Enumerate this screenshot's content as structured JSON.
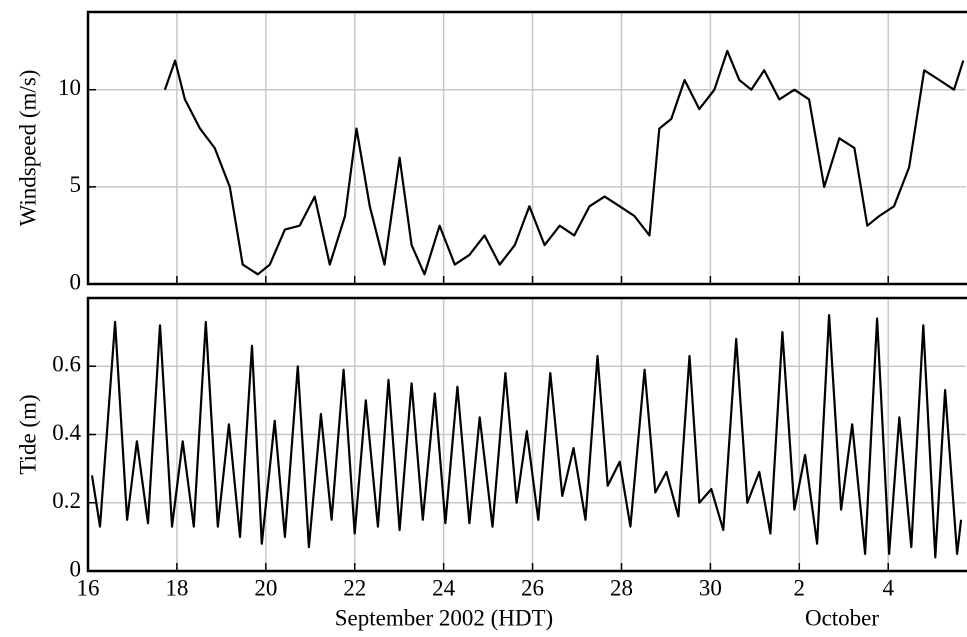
{
  "chart_data": [
    {
      "type": "line",
      "ylabel": "Windspeed (m/s)",
      "color": "#000000",
      "grid": true,
      "xlim": [
        0,
        19.75
      ],
      "ylim": [
        0,
        14
      ],
      "yticks": [
        0,
        5,
        10
      ],
      "x": [
        1.73,
        1.96,
        2.18,
        2.52,
        2.85,
        3.19,
        3.48,
        3.82,
        4.09,
        4.43,
        4.76,
        5.1,
        5.44,
        5.78,
        6.04,
        6.34,
        6.67,
        7.01,
        7.28,
        7.57,
        7.91,
        8.25,
        8.58,
        8.92,
        9.26,
        9.6,
        9.93,
        10.27,
        10.61,
        10.94,
        11.28,
        11.62,
        11.96,
        12.29,
        12.63,
        12.85,
        13.12,
        13.42,
        13.75,
        14.09,
        14.38,
        14.65,
        14.92,
        15.21,
        15.55,
        15.89,
        16.22,
        16.56,
        16.9,
        17.24,
        17.53,
        17.8,
        18.13,
        18.47,
        18.81,
        19.15,
        19.48,
        19.69
      ],
      "values": [
        10,
        11.5,
        9.5,
        8,
        7,
        5,
        1,
        0.5,
        1,
        2.8,
        3,
        4.5,
        1,
        3.5,
        8,
        4,
        1,
        6.5,
        2,
        0.5,
        3,
        1,
        1.5,
        2.5,
        1,
        2,
        4,
        2,
        3,
        2.5,
        4,
        4.5,
        4,
        3.5,
        2.5,
        8,
        8.5,
        10.5,
        9,
        10,
        12,
        10.5,
        10,
        11,
        9.5,
        10,
        9.5,
        5,
        7.5,
        7,
        3,
        3.5,
        4,
        6,
        11,
        10.5,
        10,
        11.5
      ]
    },
    {
      "type": "line",
      "ylabel": "Tide (m)",
      "xlabel": "September 2002 (HDT)",
      "annotation": "October",
      "color": "#000000",
      "grid": true,
      "xlim": [
        0,
        19.75
      ],
      "ylim": [
        0,
        0.8
      ],
      "yticks": [
        0,
        0.2,
        0.4,
        0.6
      ],
      "xticks": [
        {
          "value": 0,
          "label": "16"
        },
        {
          "value": 2,
          "label": "18"
        },
        {
          "value": 4,
          "label": "20"
        },
        {
          "value": 6,
          "label": "22"
        },
        {
          "value": 8,
          "label": "24"
        },
        {
          "value": 10,
          "label": "26"
        },
        {
          "value": 12,
          "label": "28"
        },
        {
          "value": 14,
          "label": "30"
        },
        {
          "value": 16,
          "label": "2"
        },
        {
          "value": 18,
          "label": "4"
        }
      ],
      "x": [
        0.09,
        0.27,
        0.61,
        0.88,
        1.1,
        1.35,
        1.62,
        1.89,
        2.13,
        2.38,
        2.65,
        2.92,
        3.17,
        3.42,
        3.69,
        3.91,
        4.2,
        4.43,
        4.72,
        4.97,
        5.24,
        5.48,
        5.75,
        6.0,
        6.25,
        6.52,
        6.76,
        7.01,
        7.28,
        7.53,
        7.8,
        8.04,
        8.31,
        8.58,
        8.81,
        9.1,
        9.39,
        9.64,
        9.87,
        10.13,
        10.4,
        10.67,
        10.92,
        11.19,
        11.46,
        11.69,
        11.96,
        12.2,
        12.52,
        12.76,
        13.01,
        13.28,
        13.53,
        13.75,
        14.02,
        14.29,
        14.58,
        14.83,
        15.1,
        15.35,
        15.62,
        15.89,
        16.13,
        16.4,
        16.67,
        16.94,
        17.19,
        17.48,
        17.75,
        18.02,
        18.25,
        18.52,
        18.79,
        19.06,
        19.28,
        19.55,
        19.64
      ],
      "values": [
        0.28,
        0.13,
        0.73,
        0.15,
        0.38,
        0.14,
        0.72,
        0.13,
        0.38,
        0.13,
        0.73,
        0.13,
        0.43,
        0.1,
        0.66,
        0.08,
        0.44,
        0.1,
        0.6,
        0.07,
        0.46,
        0.15,
        0.59,
        0.11,
        0.5,
        0.13,
        0.56,
        0.12,
        0.55,
        0.15,
        0.52,
        0.14,
        0.54,
        0.14,
        0.45,
        0.13,
        0.58,
        0.2,
        0.41,
        0.15,
        0.58,
        0.22,
        0.36,
        0.15,
        0.63,
        0.25,
        0.32,
        0.13,
        0.59,
        0.23,
        0.29,
        0.16,
        0.63,
        0.2,
        0.24,
        0.12,
        0.68,
        0.2,
        0.29,
        0.11,
        0.7,
        0.18,
        0.34,
        0.08,
        0.75,
        0.18,
        0.43,
        0.05,
        0.74,
        0.05,
        0.45,
        0.07,
        0.72,
        0.04,
        0.53,
        0.05,
        0.15
      ]
    }
  ]
}
